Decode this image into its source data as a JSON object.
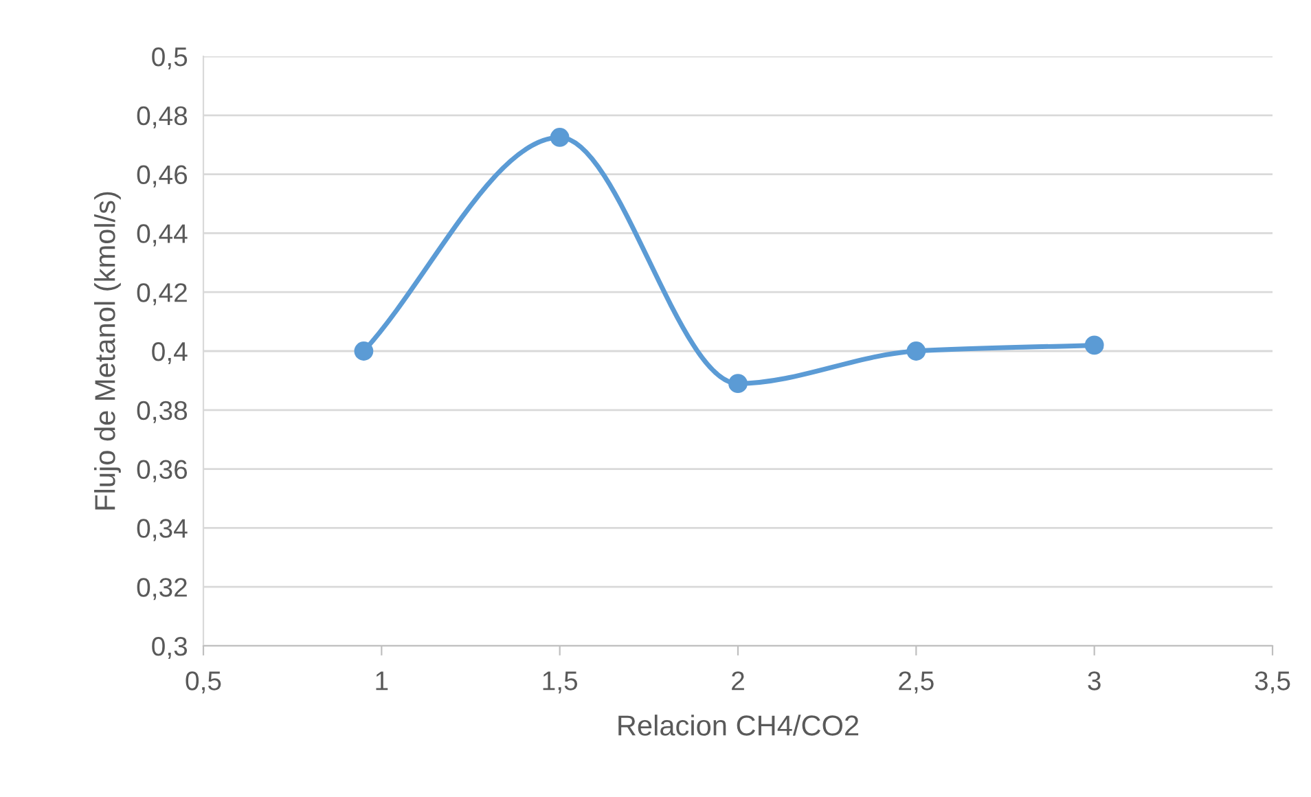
{
  "chart_data": {
    "type": "line",
    "xlabel": "Relacion CH4/CO2",
    "ylabel": "Flujo de Metanol (kmol/s)",
    "x": [
      0.95,
      1.5,
      2.0,
      2.5,
      3.0
    ],
    "series": [
      {
        "color": "#5b9bd5",
        "values": [
          0.4,
          0.4725,
          0.389,
          0.4,
          0.402
        ]
      }
    ],
    "xlim": [
      0.5,
      3.5
    ],
    "xticks": [
      {
        "value": 0.5,
        "label": "0,5"
      },
      1,
      {
        "value": 1.5,
        "label": "1,5"
      },
      2,
      {
        "value": 2.5,
        "label": "2,5"
      },
      3,
      {
        "value": 3.5,
        "label": "3,5"
      }
    ],
    "ylim": [
      0.3,
      0.5
    ],
    "yticks": [
      {
        "value": 0.3,
        "label": "0,3"
      },
      {
        "value": 0.32,
        "label": "0,32"
      },
      {
        "value": 0.34,
        "label": "0,34"
      },
      {
        "value": 0.36,
        "label": "0,36"
      },
      {
        "value": 0.38,
        "label": "0,38"
      },
      {
        "value": 0.4,
        "label": "0,4"
      },
      {
        "value": 0.42,
        "label": "0,42"
      },
      {
        "value": 0.44,
        "label": "0,44"
      },
      {
        "value": 0.46,
        "label": "0,46"
      },
      {
        "value": 0.48,
        "label": "0,48"
      },
      {
        "value": 0.5,
        "label": "0,5"
      }
    ],
    "grid": "y",
    "marker": "circle",
    "line_style": "solid",
    "legend": false
  }
}
